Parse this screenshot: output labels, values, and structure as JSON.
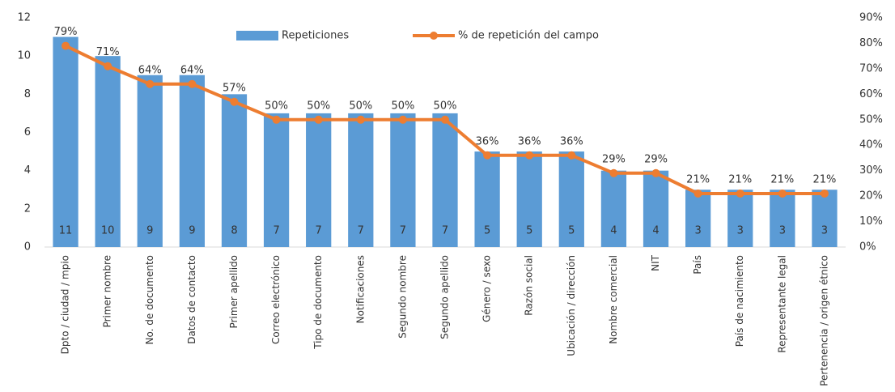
{
  "chart_data": {
    "type": "bar_line",
    "categories": [
      "Dpto / ciudad / mpio",
      "Primer nombre",
      "No. de documento",
      "Datos de contacto",
      "Primer apellido",
      "Correo electrónico",
      "Tipo de documento",
      "Notificaciones",
      "Segundo nombre",
      "Segundo apellido",
      "Género / sexo",
      "Razón social",
      "Ubicación / dirección",
      "Nombre comercial",
      "NIT",
      "País",
      "País de nacimiento",
      "Representante legal",
      "Pertenencia / origen étnico"
    ],
    "series": [
      {
        "name": "Repeticiones",
        "color": "#5b9bd5",
        "type": "bar",
        "values": [
          11,
          10,
          9,
          9,
          8,
          7,
          7,
          7,
          7,
          7,
          5,
          5,
          5,
          4,
          4,
          3,
          3,
          3,
          3
        ]
      },
      {
        "name": "% de repetición del campo",
        "color": "#ed7d31",
        "type": "line",
        "axis": "y2",
        "values": [
          79,
          71,
          64,
          64,
          57,
          50,
          50,
          50,
          50,
          50,
          36,
          36,
          36,
          29,
          29,
          21,
          21,
          21,
          21
        ],
        "value_labels": [
          "79%",
          "71%",
          "64%",
          "64%",
          "57%",
          "50%",
          "50%",
          "50%",
          "50%",
          "50%",
          "36%",
          "36%",
          "36%",
          "29%",
          "29%",
          "21%",
          "21%",
          "21%",
          "21%"
        ]
      }
    ],
    "ylim": [
      0,
      12
    ],
    "yticks": [
      0,
      2,
      4,
      6,
      8,
      10,
      12
    ],
    "y2lim": [
      0,
      90
    ],
    "y2ticks": [
      {
        "value": 0,
        "label": "0%"
      },
      {
        "value": 10,
        "label": "10%"
      },
      {
        "value": 20,
        "label": "20%"
      },
      {
        "value": 30,
        "label": "30%"
      },
      {
        "value": 40,
        "label": "40%"
      },
      {
        "value": 50,
        "label": "50%"
      },
      {
        "value": 60,
        "label": "60%"
      },
      {
        "value": 70,
        "label": "70%"
      },
      {
        "value": 80,
        "label": "80%"
      },
      {
        "value": 90,
        "label": "90%"
      }
    ],
    "legend": "top"
  }
}
